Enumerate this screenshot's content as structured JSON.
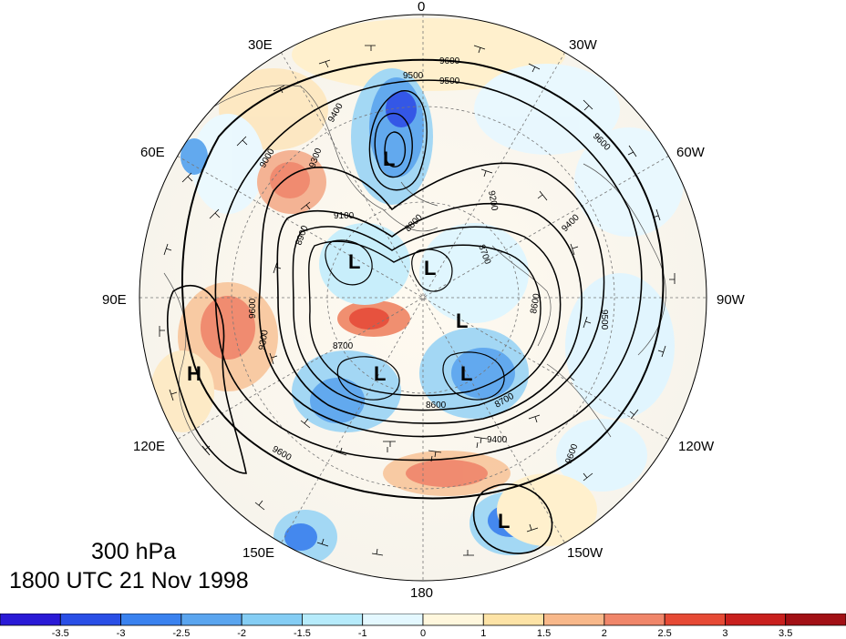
{
  "map": {
    "level_label": "300 hPa",
    "valid_time": "1800 UTC 21 Nov 1998",
    "longitude_labels": [
      "0",
      "30W",
      "60W",
      "90W",
      "120W",
      "150W",
      "180",
      "150E",
      "120E",
      "90E",
      "60E",
      "30E"
    ],
    "contour_labels": [
      "9600",
      "9500",
      "9500",
      "9400",
      "9300",
      "9200",
      "9100",
      "9000",
      "8900",
      "8800",
      "8700",
      "8600",
      "9600",
      "9400",
      "9500",
      "9600",
      "9300",
      "9600",
      "8700",
      "8600",
      "8700",
      "9400",
      "9600"
    ],
    "low_marker": "L",
    "high_marker": "H",
    "lows_count_text": "L",
    "colors": {
      "strong_negative": "#2727d6",
      "negative": "#5aa5ef",
      "weak_negative": "#dff6ff",
      "weak_positive": "#fff3cc",
      "positive": "#f48a6a",
      "strong_positive": "#e64a35"
    }
  },
  "colorbar": {
    "labels": [
      "-3.5",
      "-3",
      "-2.5",
      "-2",
      "-1.5",
      "-1",
      "0",
      "1",
      "1.5",
      "2",
      "2.5",
      "3",
      "3.5"
    ],
    "colors": [
      "#2a1ad6",
      "#2a4fe6",
      "#3a82ef",
      "#5aa5ef",
      "#84cdf4",
      "#b6ebfb",
      "#e4f8ff",
      "#fff7dd",
      "#fde3a6",
      "#f8b88a",
      "#f0866a",
      "#e64a35",
      "#c9201e",
      "#a21015"
    ]
  }
}
